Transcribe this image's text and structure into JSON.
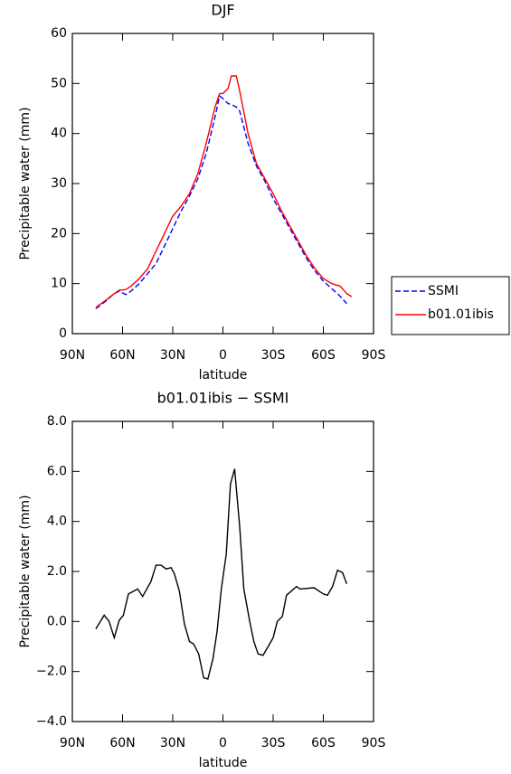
{
  "chart_data": [
    {
      "type": "line",
      "title": "DJF",
      "xlabel": "latitude",
      "ylabel": "Precipitable water (mm)",
      "x": [
        76,
        70,
        65,
        62,
        58,
        55,
        50,
        45,
        40,
        35,
        30,
        25,
        20,
        15,
        10,
        5,
        2,
        0,
        -3,
        -5,
        -8,
        -10,
        -15,
        -20,
        -25,
        -30,
        -35,
        -40,
        -45,
        -50,
        -55,
        -60,
        -65,
        -70,
        -74,
        -77
      ],
      "series": [
        {
          "name": "SSMI",
          "color": "#0000ff",
          "dash": true,
          "values": [
            5,
            6.5,
            8,
            8.5,
            7.8,
            8.5,
            10,
            12,
            14,
            17.5,
            21,
            24.5,
            27.5,
            31,
            36,
            43,
            47.5,
            47,
            46,
            45.8,
            45.3,
            44.5,
            38,
            33.5,
            30.5,
            27,
            24,
            21,
            18,
            15,
            12.5,
            10.5,
            9,
            7.5,
            6,
            null
          ]
        },
        {
          "name": "b01.01ibis",
          "color": "#ff0000",
          "dash": false,
          "values": [
            5.2,
            6.7,
            8,
            8.7,
            8.8,
            9.5,
            11,
            13,
            16.5,
            20,
            23.5,
            25.5,
            28,
            32,
            38,
            45,
            48,
            48,
            49,
            51.5,
            51.5,
            48.5,
            40,
            34,
            31,
            28,
            24.5,
            21.5,
            18.5,
            15.5,
            13,
            11,
            10,
            9.5,
            8,
            7.4
          ]
        }
      ],
      "xlim": [
        90,
        -90
      ],
      "xticks": [
        {
          "value": 90,
          "label": "90N"
        },
        {
          "value": 60,
          "label": "60N"
        },
        {
          "value": 30,
          "label": "30N"
        },
        0,
        {
          "value": -30,
          "label": "30S"
        },
        {
          "value": -60,
          "label": "60S"
        },
        {
          "value": -90,
          "label": "90S"
        }
      ],
      "ylim": [
        0,
        60
      ],
      "yticks": [
        0,
        10,
        20,
        30,
        40,
        50,
        60
      ],
      "legend": "right"
    },
    {
      "type": "line",
      "title": "b01.01ibis − SSMI",
      "xlabel": "latitude",
      "ylabel": "Precipitable water (mm)",
      "x": [
        76,
        71,
        68,
        65,
        62,
        59.5,
        56.5,
        51,
        48,
        43,
        40,
        37,
        34,
        31,
        29,
        26,
        23,
        20,
        17.5,
        14.5,
        11.5,
        9,
        6,
        3.5,
        1,
        -2,
        -4.5,
        -7,
        -10,
        -12.5,
        -16,
        -18.5,
        -21,
        -24,
        -27,
        -30,
        -32.5,
        -35.5,
        -38,
        -44,
        -46,
        -54.5,
        -60,
        -62.5,
        -65.5,
        -68.5,
        -71.5,
        -74
      ],
      "series": [
        {
          "color": "#000000",
          "dash": false,
          "values": [
            -0.3,
            0.25,
            0,
            -0.65,
            0.05,
            0.25,
            1.1,
            1.3,
            1.0,
            1.6,
            2.25,
            2.25,
            2.1,
            2.15,
            1.9,
            1.2,
            -0.1,
            -0.8,
            -0.9,
            -1.3,
            -2.25,
            -2.3,
            -1.5,
            -0.4,
            1.3,
            2.7,
            5.5,
            6.1,
            3.8,
            1.3,
            0,
            -0.8,
            -1.3,
            -1.35,
            -1.0,
            -0.65,
            0,
            0.2,
            1.05,
            1.4,
            1.3,
            1.35,
            1.1,
            1.05,
            1.4,
            2.05,
            1.95,
            1.5
          ]
        }
      ],
      "xlim": [
        90,
        -90
      ],
      "xticks": [
        {
          "value": 90,
          "label": "90N"
        },
        {
          "value": 60,
          "label": "60N"
        },
        {
          "value": 30,
          "label": "30N"
        },
        0,
        {
          "value": -30,
          "label": "30S"
        },
        {
          "value": -60,
          "label": "60S"
        },
        {
          "value": -90,
          "label": "90S"
        }
      ],
      "ylim": [
        -4,
        8
      ],
      "yticks": [
        {
          "value": -4,
          "label": "−4.0"
        },
        {
          "value": -2,
          "label": "−2.0"
        },
        {
          "value": 0,
          "label": "0.0"
        },
        {
          "value": 2,
          "label": "2.0"
        },
        {
          "value": 4,
          "label": "4.0"
        },
        {
          "value": 6,
          "label": "6.0"
        },
        {
          "value": 8,
          "label": "8.0"
        }
      ]
    }
  ]
}
